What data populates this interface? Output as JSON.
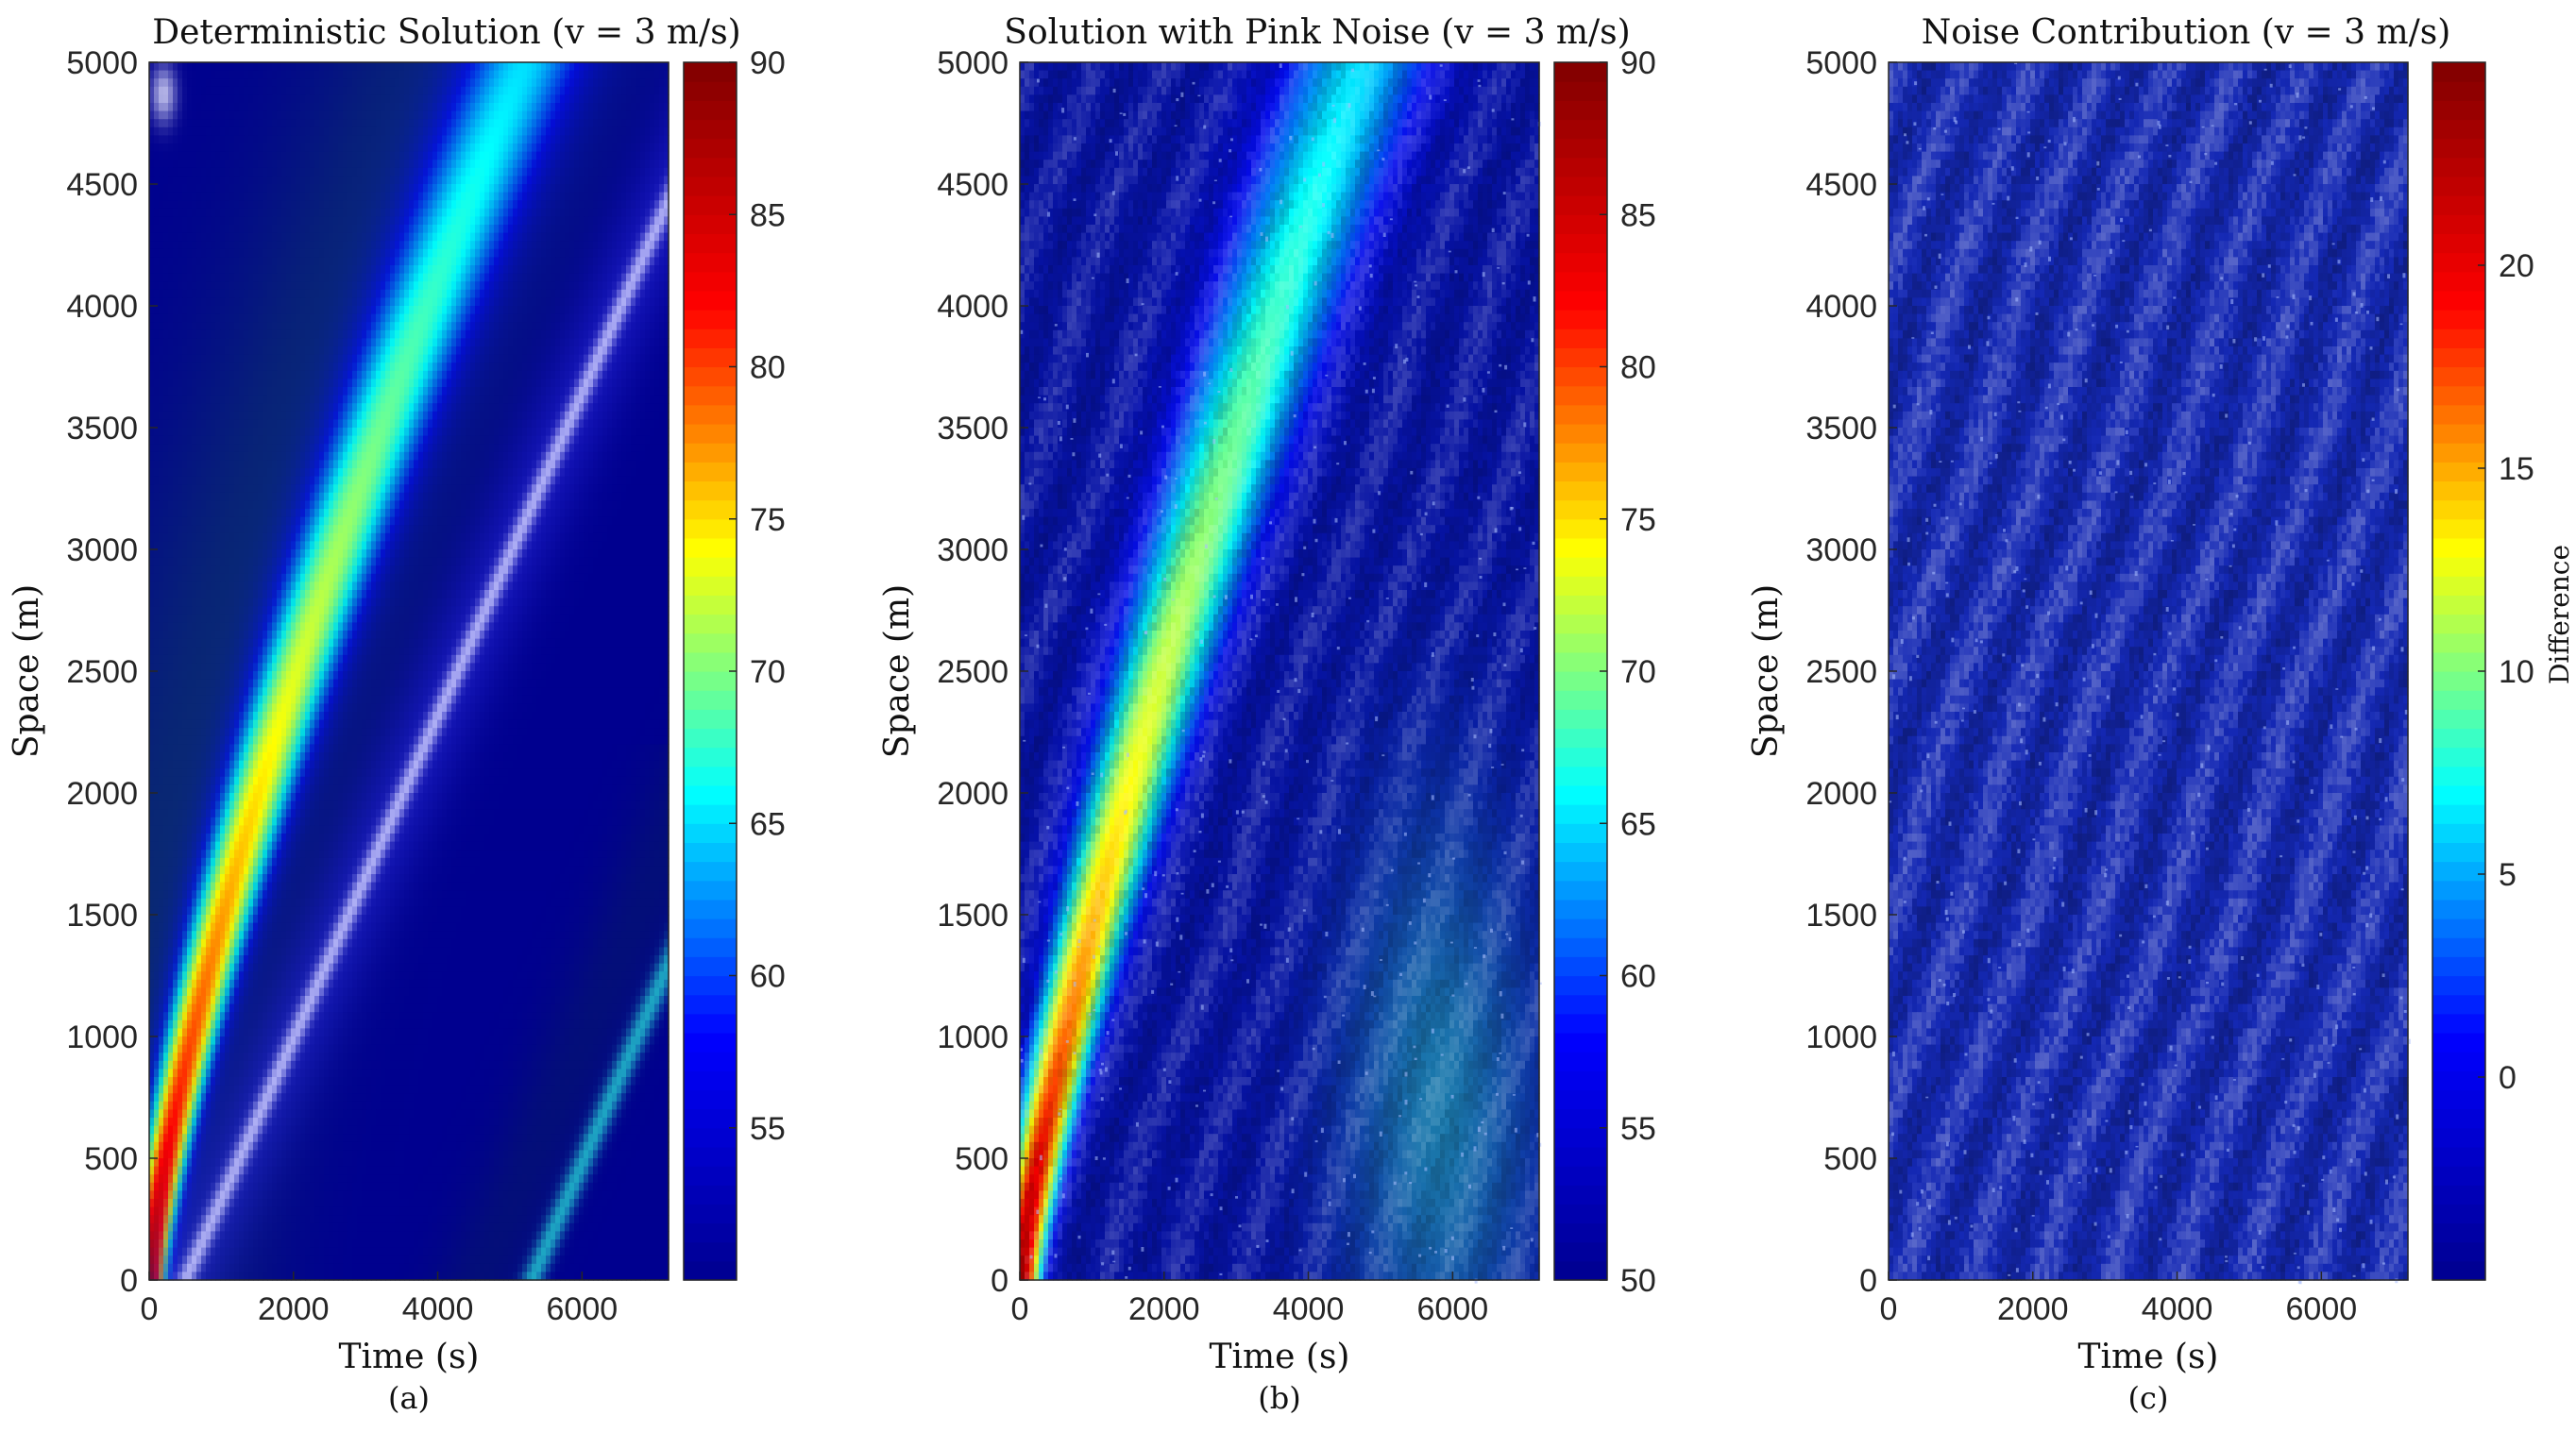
{
  "chart_data": [
    {
      "type": "heatmap",
      "panel": "(a)",
      "title": "Deterministic Solution (v = 3 m/s)",
      "xlabel": "Time (s)",
      "ylabel": "Space (m)",
      "xlim": [
        0,
        7200
      ],
      "ylim": [
        0,
        5000
      ],
      "xticks": [
        0,
        2000,
        4000,
        6000
      ],
      "yticks": [
        0,
        500,
        1000,
        1500,
        2000,
        2500,
        3000,
        3500,
        4000,
        4500,
        5000
      ],
      "colorbar": {
        "label": "",
        "range": [
          50,
          90
        ],
        "ticks": [
          55,
          60,
          65,
          70,
          75,
          80,
          85,
          90
        ]
      },
      "field": "deterministic",
      "waves": [
        {
          "name": "main",
          "x0": 0,
          "x1": 5200,
          "peak_start": 90,
          "peak_end": 65
        },
        {
          "name": "white",
          "x0": 500,
          "x1": 7150,
          "y_end": 4400
        },
        {
          "name": "cyan",
          "x0": 5300,
          "x1": 7200,
          "y_end": 1300
        }
      ]
    },
    {
      "type": "heatmap",
      "panel": "(b)",
      "title": "Solution with Pink Noise (v = 3 m/s)",
      "xlabel": "Time (s)",
      "ylabel": "Space (m)",
      "xlim": [
        0,
        7200
      ],
      "ylim": [
        0,
        5000
      ],
      "xticks": [
        0,
        2000,
        4000,
        6000
      ],
      "yticks": [
        0,
        500,
        1000,
        1500,
        2000,
        2500,
        3000,
        3500,
        4000,
        4500,
        5000
      ],
      "colorbar": {
        "label": "",
        "range": [
          50,
          90
        ],
        "ticks": [
          50,
          55,
          60,
          65,
          70,
          75,
          80,
          85,
          90
        ]
      },
      "field": "noisy"
    },
    {
      "type": "heatmap",
      "panel": "(c)",
      "title": "Noise Contribution (v = 3 m/s)",
      "xlabel": "Time (s)",
      "ylabel": "Space (m)",
      "xlim": [
        0,
        7200
      ],
      "ylim": [
        0,
        5000
      ],
      "xticks": [
        0,
        2000,
        4000,
        6000
      ],
      "yticks": [
        0,
        500,
        1000,
        1500,
        2000,
        2500,
        3000,
        3500,
        4000,
        4500,
        5000
      ],
      "colorbar": {
        "label": "Difference",
        "range": [
          -5,
          25
        ],
        "ticks": [
          0,
          5,
          10,
          15,
          20
        ]
      },
      "field": "difference"
    }
  ],
  "colormap": [
    "#00008f",
    "#0000ff",
    "#00ffff",
    "#ffff00",
    "#ff0000",
    "#800000"
  ]
}
